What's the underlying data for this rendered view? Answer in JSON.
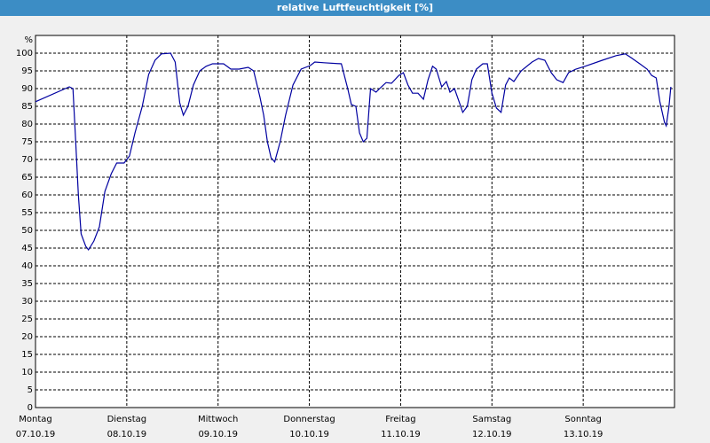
{
  "chart_data": {
    "type": "line",
    "title": "relative Luftfeuchtigkeit [%]",
    "y_label": "%",
    "xlim": [
      0,
      7
    ],
    "ylim": [
      0,
      105
    ],
    "xticks": [
      {
        "value": 0,
        "label": "Montag",
        "date": "07.10.19"
      },
      {
        "value": 1,
        "label": "Dienstag",
        "date": "08.10.19"
      },
      {
        "value": 2,
        "label": "Mittwoch",
        "date": "09.10.19"
      },
      {
        "value": 3,
        "label": "Donnerstag",
        "date": "10.10.19"
      },
      {
        "value": 4,
        "label": "Freitag",
        "date": "11.10.19"
      },
      {
        "value": 5,
        "label": "Samstag",
        "date": "12.10.19"
      },
      {
        "value": 6,
        "label": "Sonntag",
        "date": "13.10.19"
      }
    ],
    "yticks": [
      0,
      5,
      10,
      15,
      20,
      25,
      30,
      35,
      40,
      45,
      50,
      55,
      60,
      65,
      70,
      75,
      80,
      85,
      90,
      95,
      100
    ],
    "grid": true,
    "series": [
      {
        "color": "#0000a0",
        "x": [
          0,
          0.37,
          0.41,
          0.44,
          0.47,
          0.5,
          0.55,
          0.58,
          0.64,
          0.7,
          0.76,
          0.83,
          0.89,
          0.97,
          1.03,
          1.09,
          1.17,
          1.24,
          1.31,
          1.38,
          1.48,
          1.53,
          1.58,
          1.62,
          1.67,
          1.73,
          1.8,
          1.87,
          1.94,
          2.06,
          2.14,
          2.23,
          2.33,
          2.39,
          2.46,
          2.5,
          2.54,
          2.58,
          2.62,
          2.68,
          2.74,
          2.82,
          2.91,
          3.01,
          3.06,
          3.16,
          3.35,
          3.42,
          3.46,
          3.51,
          3.55,
          3.59,
          3.63,
          3.67,
          3.73,
          3.79,
          3.84,
          3.9,
          3.98,
          4.03,
          4.08,
          4.13,
          4.19,
          4.25,
          4.3,
          4.35,
          4.39,
          4.45,
          4.5,
          4.54,
          4.59,
          4.64,
          4.68,
          4.73,
          4.78,
          4.83,
          4.9,
          4.95,
          5.0,
          5.05,
          5.1,
          5.15,
          5.19,
          5.24,
          5.32,
          5.44,
          5.51,
          5.58,
          5.65,
          5.71,
          5.78,
          5.84,
          5.92,
          6.02,
          6.21,
          6.36,
          6.46,
          6.52,
          6.62,
          6.7,
          6.75,
          6.8,
          6.84,
          6.89,
          6.91,
          6.94,
          6.96
        ],
        "values": [
          86.3,
          90.5,
          90,
          75,
          60,
          49,
          45.5,
          44.5,
          47,
          51,
          61,
          66,
          69,
          69,
          71,
          77.5,
          85,
          94,
          98,
          99.8,
          100,
          97.5,
          86,
          82.5,
          85,
          91,
          95,
          96.3,
          97,
          97,
          95.5,
          95.5,
          96,
          95,
          87.5,
          82.5,
          75,
          70.5,
          69.3,
          75,
          82.5,
          91,
          95.5,
          96.5,
          97.5,
          97.3,
          97,
          90,
          85.5,
          85,
          77.5,
          75,
          76,
          90,
          89,
          90.5,
          91.7,
          91.5,
          93.7,
          94.5,
          91,
          88.7,
          88.7,
          87,
          92.5,
          96.3,
          95.5,
          90.5,
          92,
          89,
          90,
          86.3,
          83.3,
          85,
          92.5,
          95.5,
          97,
          97,
          88.7,
          84.5,
          83.3,
          91,
          93,
          92,
          95,
          97.5,
          98.5,
          98,
          94.5,
          92.5,
          91.7,
          94.5,
          95.5,
          96.3,
          98,
          99.3,
          99.8,
          98.8,
          97,
          95.5,
          93.7,
          93,
          86.3,
          80.5,
          79.5,
          85,
          90.5
        ]
      }
    ]
  }
}
